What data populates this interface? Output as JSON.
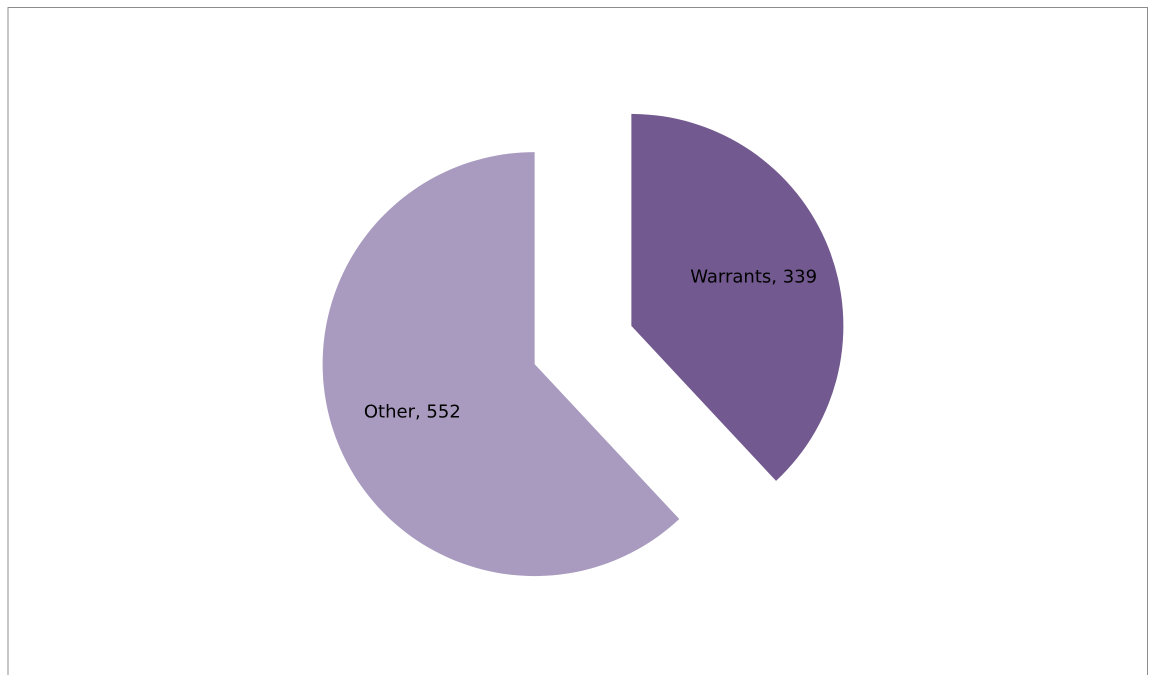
{
  "chart_data": {
    "type": "pie",
    "values": [
      339,
      552
    ],
    "value_labels": [
      "Warrants, 339",
      "Other, 552"
    ],
    "colors": [
      "#72598f",
      "#a89bbf"
    ],
    "start_angle": 0,
    "direction": "clockwise",
    "exploded": true
  }
}
